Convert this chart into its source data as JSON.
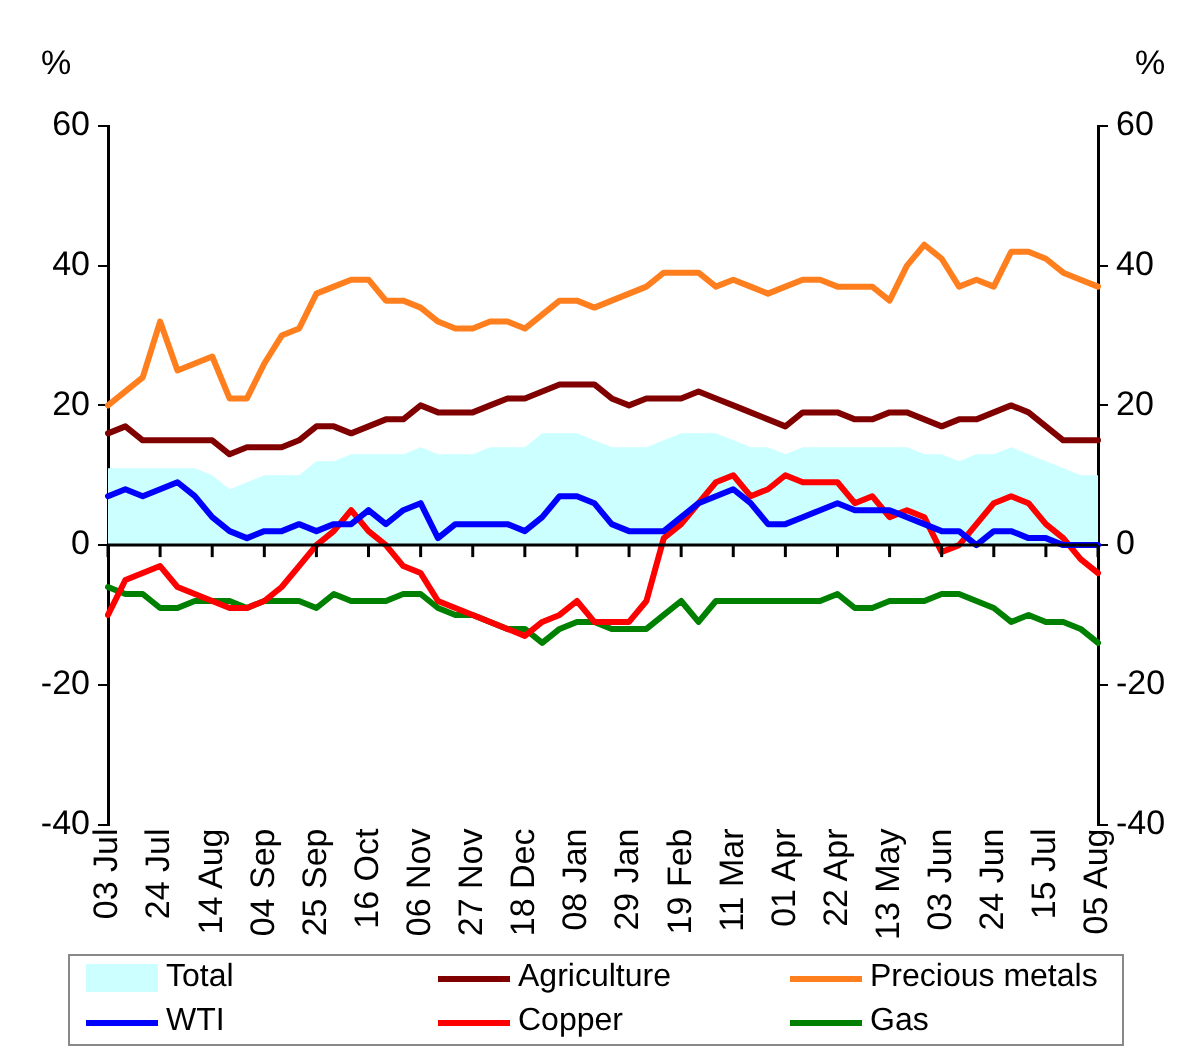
{
  "chart_data": {
    "type": "line",
    "ylabel": "%",
    "y2label": "%",
    "categories": [
      "03 Jul",
      null,
      null,
      "24 Jul",
      null,
      null,
      "14 Aug",
      null,
      null,
      "04 Sep",
      null,
      null,
      "25 Sep",
      null,
      null,
      "16 Oct",
      null,
      null,
      "06 Nov",
      null,
      null,
      "27 Nov",
      null,
      null,
      "18 Dec",
      null,
      null,
      "08 Jan",
      null,
      null,
      "29 Jan",
      null,
      null,
      "19 Feb",
      null,
      null,
      "11 Mar",
      null,
      null,
      "01 Apr",
      null,
      null,
      "22 Apr",
      null,
      null,
      "13 May",
      null,
      null,
      "03 Jun",
      null,
      null,
      "24 Jun",
      null,
      null,
      "15 Jul",
      null,
      null,
      "05 Aug"
    ],
    "series": [
      {
        "name": "Total",
        "type": "area",
        "color": "#ccffff",
        "values": [
          11,
          11,
          11,
          11,
          11,
          11,
          10,
          8,
          9,
          10,
          10,
          10,
          12,
          12,
          13,
          13,
          13,
          13,
          14,
          13,
          13,
          13,
          14,
          14,
          14,
          16,
          16,
          16,
          15,
          14,
          14,
          14,
          15,
          16,
          16,
          16,
          15,
          14,
          14,
          13,
          14,
          14,
          14,
          14,
          14,
          14,
          14,
          13,
          13,
          12,
          13,
          13,
          14,
          13,
          12,
          11,
          10,
          10
        ]
      },
      {
        "name": "Agriculture",
        "color": "#800000",
        "values": [
          16,
          17,
          15,
          15,
          15,
          15,
          15,
          13,
          14,
          14,
          14,
          15,
          17,
          17,
          16,
          17,
          18,
          18,
          20,
          19,
          19,
          19,
          20,
          21,
          21,
          22,
          23,
          23,
          23,
          21,
          20,
          21,
          21,
          21,
          22,
          21,
          20,
          19,
          18,
          17,
          19,
          19,
          19,
          18,
          18,
          19,
          19,
          18,
          17,
          18,
          18,
          19,
          20,
          19,
          17,
          15,
          15,
          15
        ]
      },
      {
        "name": "Precious metals",
        "color": "#ff7f1f",
        "values": [
          20,
          22,
          24,
          32,
          25,
          26,
          27,
          21,
          21,
          26,
          30,
          31,
          36,
          37,
          38,
          38,
          35,
          35,
          34,
          32,
          31,
          31,
          32,
          32,
          31,
          33,
          35,
          35,
          34,
          35,
          36,
          37,
          39,
          39,
          39,
          37,
          38,
          37,
          36,
          37,
          38,
          38,
          37,
          37,
          37,
          35,
          40,
          43,
          41,
          37,
          38,
          37,
          42,
          42,
          41,
          39,
          38,
          37
        ]
      },
      {
        "name": "WTI",
        "color": "#0000ff",
        "values": [
          7,
          8,
          7,
          8,
          9,
          7,
          4,
          2,
          1,
          2,
          2,
          3,
          2,
          3,
          3,
          5,
          3,
          5,
          6,
          1,
          3,
          3,
          3,
          3,
          2,
          4,
          7,
          7,
          6,
          3,
          2,
          2,
          2,
          4,
          6,
          7,
          8,
          6,
          3,
          3,
          4,
          5,
          6,
          5,
          5,
          5,
          4,
          3,
          2,
          2,
          0,
          2,
          2,
          1,
          1,
          0,
          0,
          0
        ]
      },
      {
        "name": "Copper",
        "color": "#ff0000",
        "values": [
          -10,
          -5,
          -4,
          -3,
          -6,
          -7,
          -8,
          -9,
          -9,
          -8,
          -6,
          -3,
          0,
          2,
          5,
          2,
          0,
          -3,
          -4,
          -8,
          -9,
          -10,
          -11,
          -12,
          -13,
          -11,
          -10,
          -8,
          -11,
          -11,
          -11,
          -8,
          1,
          3,
          6,
          9,
          10,
          7,
          8,
          10,
          9,
          9,
          9,
          6,
          7,
          4,
          5,
          4,
          -1,
          0,
          3,
          6,
          7,
          6,
          3,
          1,
          -2,
          -4
        ]
      },
      {
        "name": "Gas",
        "color": "#008000",
        "values": [
          -6,
          -7,
          -7,
          -9,
          -9,
          -8,
          -8,
          -8,
          -9,
          -8,
          -8,
          -8,
          -9,
          -7,
          -8,
          -8,
          -8,
          -7,
          -7,
          -9,
          -10,
          -10,
          -11,
          -12,
          -12,
          -14,
          -12,
          -11,
          -11,
          -12,
          -12,
          -12,
          -10,
          -8,
          -11,
          -8,
          -8,
          -8,
          -8,
          -8,
          -8,
          -8,
          -7,
          -9,
          -9,
          -8,
          -8,
          -8,
          -7,
          -7,
          -8,
          -9,
          -11,
          -10,
          -11,
          -11,
          -12,
          -14
        ]
      }
    ],
    "ylim": [
      -40,
      60
    ],
    "yticks": [
      -40,
      -20,
      0,
      20,
      40,
      60
    ],
    "y2lim": [
      -40,
      60
    ],
    "y2ticks": [
      -40,
      -20,
      0,
      20,
      40,
      60
    ],
    "legend": "bottom",
    "marker": "none"
  }
}
